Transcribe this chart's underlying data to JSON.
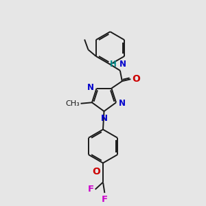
{
  "bg_color": "#e6e6e6",
  "bond_color": "#1a1a1a",
  "n_color": "#0000cc",
  "o_color": "#cc0000",
  "f_color": "#cc00cc",
  "nh_color": "#008888",
  "figsize": [
    3.0,
    3.0
  ],
  "dpi": 100,
  "xlim": [
    0,
    10
  ],
  "ylim": [
    0,
    10
  ]
}
